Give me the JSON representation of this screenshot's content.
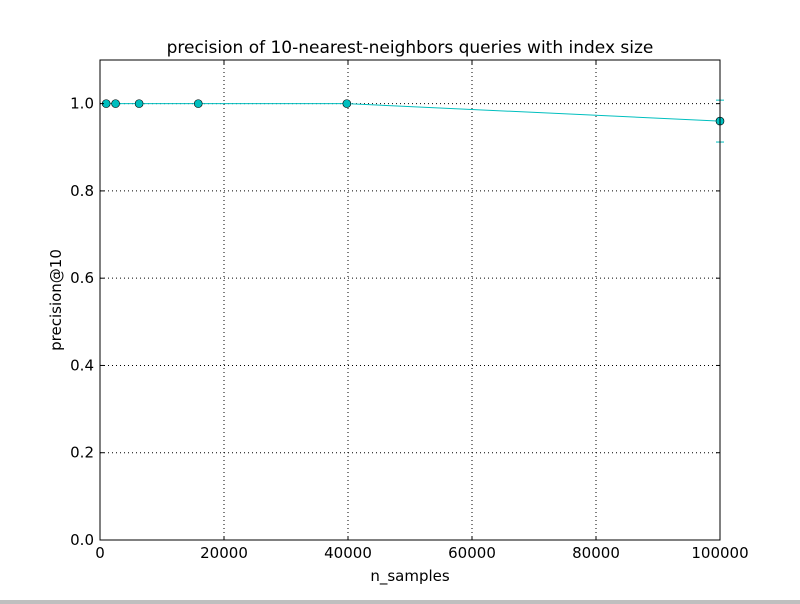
{
  "chart_data": {
    "type": "line",
    "title": "precision of 10-nearest-neighbors queries with index size",
    "xlabel": "n_samples",
    "ylabel": "precision@10",
    "xlim": [
      0,
      100000
    ],
    "ylim": [
      0,
      1.1
    ],
    "xticks": [
      0,
      20000,
      40000,
      60000,
      80000,
      100000
    ],
    "xtick_labels": [
      "0",
      "20000",
      "40000",
      "60000",
      "80000",
      "100000"
    ],
    "yticks": [
      0,
      0.2,
      0.4,
      0.6,
      0.8,
      1.0
    ],
    "ytick_labels": [
      "0.0",
      "0.2",
      "0.4",
      "0.6",
      "0.8",
      "1.0"
    ],
    "grid": true,
    "series": [
      {
        "x": [
          1000,
          2512,
          6310,
          15849,
          39811,
          100000
        ],
        "y": [
          1.0,
          1.0,
          1.0,
          1.0,
          1.0,
          0.96
        ],
        "yerr": [
          0,
          0,
          0,
          0,
          0,
          0.048
        ],
        "color": "#00bfbf",
        "marker": "circle"
      }
    ]
  }
}
